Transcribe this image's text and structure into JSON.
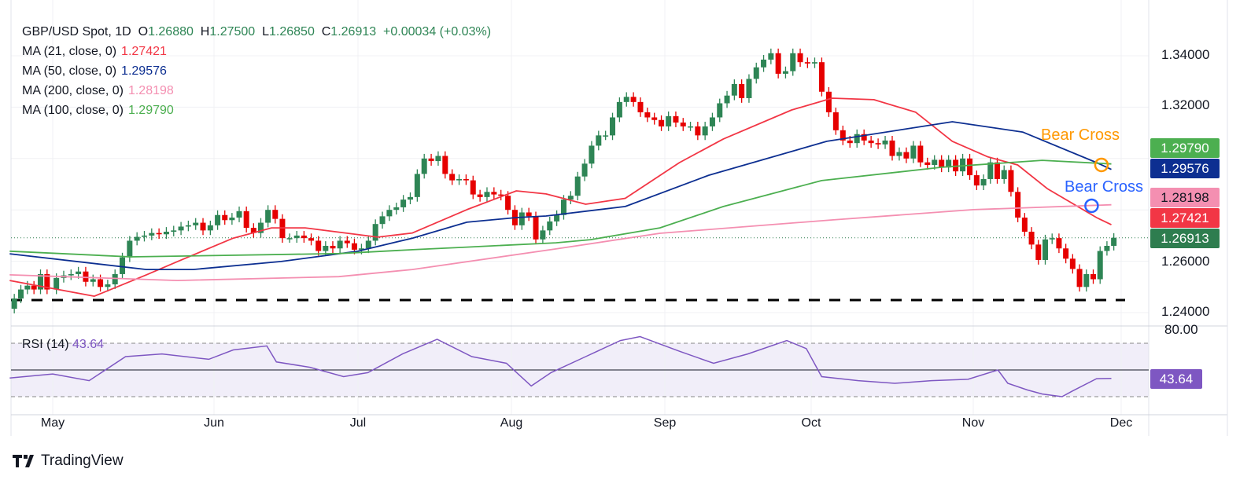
{
  "header": {
    "symbol": "GBP/USD Spot, 1D",
    "o_label": "O",
    "o": "1.26880",
    "h_label": "H",
    "h": "1.27500",
    "l_label": "L",
    "l": "1.26850",
    "c_label": "C",
    "c": "1.26913",
    "change": "+0.00034 (+0.03%)",
    "mas": [
      {
        "label": "MA (21, close, 0)",
        "value": "1.27421",
        "color": "#f23645"
      },
      {
        "label": "MA (50, close, 0)",
        "value": "1.29576",
        "color": "#0d2f91"
      },
      {
        "label": "MA (200, close, 0)",
        "value": "1.28198",
        "color": "#f48fb1"
      },
      {
        "label": "MA (100, close, 0)",
        "value": "1.29790",
        "color": "#4caf50"
      }
    ]
  },
  "price_tags": [
    {
      "value": "1.29790",
      "color": "#4caf50",
      "text_color": "#ffffff"
    },
    {
      "value": "1.29576",
      "color": "#0d2f91",
      "text_color": "#ffffff"
    },
    {
      "value": "1.28198",
      "color": "#f48fb1",
      "text_color": "#131722"
    },
    {
      "value": "1.27421",
      "color": "#f23645",
      "text_color": "#ffffff"
    },
    {
      "value": "1.26913",
      "color": "#2e7d4f",
      "text_color": "#ffffff"
    }
  ],
  "rsi": {
    "label": "RSI (14)",
    "value": "43.64",
    "color": "#7e57c2",
    "tag": "43.64"
  },
  "annotations": [
    {
      "text": "Bear Cross",
      "color": "#ff9800",
      "date": "Nov 27",
      "price": 1.2975
    },
    {
      "text": "Bear Cross",
      "color": "#2962ff",
      "date": "Nov 25",
      "price": 1.2816
    }
  ],
  "logo": "TradingView",
  "chart_data": {
    "type": "candlestick",
    "title": "GBP/USD Spot, 1D",
    "y_ticks": [
      "1.34000",
      "1.32000",
      "1.26000",
      "1.24000"
    ],
    "ylim": [
      1.2375,
      1.348
    ],
    "x_ticks": [
      "May",
      "Jun",
      "Jul",
      "Aug",
      "Sep",
      "Oct",
      "Nov",
      "Dec"
    ],
    "grid": true,
    "colors": {
      "up": "#2e8555",
      "down": "#e60000"
    },
    "last_close": 1.26913,
    "support_line": 1.2449,
    "closes_by_month": [
      {
        "month": "Apr",
        "closes": [
          1.2455,
          1.249,
          1.2505,
          1.249,
          1.255,
          1.249
        ]
      },
      {
        "month": "May",
        "closes": [
          1.2535,
          1.2545,
          1.255,
          1.256,
          1.252,
          1.253,
          1.25,
          1.251,
          1.255,
          1.2615,
          1.268,
          1.2695,
          1.27,
          1.271,
          1.2705,
          1.2715,
          1.272,
          1.2735,
          1.274,
          1.275,
          1.272,
          1.274
        ]
      },
      {
        "month": "Jun",
        "closes": [
          1.278,
          1.276,
          1.277,
          1.2795,
          1.273,
          1.271,
          1.275,
          1.28,
          1.2765,
          1.269,
          1.269,
          1.27,
          1.269,
          1.268,
          1.264,
          1.266,
          1.265,
          1.268,
          1.267,
          1.2645
        ]
      },
      {
        "month": "Jul",
        "closes": [
          1.265,
          1.268,
          1.2745,
          1.2775,
          1.28,
          1.281,
          1.284,
          1.285,
          1.294,
          1.3,
          1.299,
          1.301,
          1.294,
          1.2915,
          1.292,
          1.2915,
          1.286,
          1.285,
          1.287,
          1.286,
          1.2855,
          1.28
        ]
      },
      {
        "month": "Aug",
        "closes": [
          1.274,
          1.279,
          1.2775,
          1.2685,
          1.272,
          1.2755,
          1.278,
          1.284,
          1.2855,
          1.293,
          1.298,
          1.305,
          1.309,
          1.309,
          1.316,
          1.322,
          1.324,
          1.322,
          1.318,
          1.316,
          1.315,
          1.3125
        ]
      },
      {
        "month": "Sep",
        "closes": [
          1.3165,
          1.314,
          1.3125,
          1.3125,
          1.309,
          1.3125,
          1.316,
          1.3215,
          1.3245,
          1.329,
          1.3235,
          1.331,
          1.3355,
          1.3385,
          1.341,
          1.333,
          1.334,
          1.341,
          1.3375,
          1.337
        ]
      },
      {
        "month": "Oct",
        "closes": [
          1.3375,
          1.326,
          1.318,
          1.311,
          1.307,
          1.306,
          1.3095,
          1.307,
          1.306,
          1.3055,
          1.307,
          1.301,
          1.3025,
          1.3,
          1.305,
          1.2985,
          1.2975,
          1.2995,
          1.2965,
          1.2995,
          1.295,
          1.3,
          1.2935
        ]
      },
      {
        "month": "Nov",
        "closes": [
          1.2895,
          1.292,
          1.2985,
          1.292,
          1.2955,
          1.287,
          1.277,
          1.2715,
          1.2665,
          1.2605,
          1.2685,
          1.269,
          1.265,
          1.261,
          1.257,
          1.25,
          1.255,
          1.253,
          1.264,
          1.266,
          1.26913
        ]
      }
    ],
    "series": [
      {
        "name": "MA (21, close, 0)",
        "color": "#f23645",
        "points": [
          [
            "Apr 23",
            1.2525
          ],
          [
            "May 9",
            1.2464
          ],
          [
            "May 19",
            1.2547
          ],
          [
            "May 25",
            1.2599
          ],
          [
            "Jun 5",
            1.269
          ],
          [
            "Jun 13",
            1.273
          ],
          [
            "Jun 20",
            1.273
          ],
          [
            "Jul 5",
            1.2694
          ],
          [
            "Jul 12",
            1.271
          ],
          [
            "Jul 23",
            1.2801
          ],
          [
            "Aug 2",
            1.2874
          ],
          [
            "Aug 8",
            1.2862
          ],
          [
            "Aug 16",
            1.2822
          ],
          [
            "Aug 24",
            1.2845
          ],
          [
            "Sep 4",
            1.2984
          ],
          [
            "Sep 13",
            1.3076
          ],
          [
            "Sep 27",
            1.3189
          ],
          [
            "Oct 5",
            1.3235
          ],
          [
            "Oct 13",
            1.3229
          ],
          [
            "Oct 21",
            1.318
          ],
          [
            "Oct 28",
            1.3067
          ],
          [
            "Nov 4",
            1.3006
          ],
          [
            "Nov 10",
            1.2975
          ],
          [
            "Nov 16",
            1.2883
          ],
          [
            "Nov 26",
            1.277
          ],
          [
            "Nov 29",
            1.27421
          ]
        ]
      },
      {
        "name": "MA (50, close, 0)",
        "color": "#0d2f91",
        "points": [
          [
            "Apr 23",
            1.2629
          ],
          [
            "May 19",
            1.2568
          ],
          [
            "May 28",
            1.2568
          ],
          [
            "Jun 15",
            1.2599
          ],
          [
            "Jul 1",
            1.2639
          ],
          [
            "Jul 12",
            1.269
          ],
          [
            "Jul 23",
            1.2752
          ],
          [
            "Aug 2",
            1.277
          ],
          [
            "Aug 8",
            1.2776
          ],
          [
            "Aug 24",
            1.2813
          ],
          [
            "Sep 10",
            1.2935
          ],
          [
            "Oct 4",
            1.3067
          ],
          [
            "Oct 28",
            1.3143
          ],
          [
            "Nov 11",
            1.3103
          ],
          [
            "Nov 26",
            1.2984
          ],
          [
            "Nov 29",
            1.29576
          ]
        ]
      },
      {
        "name": "MA (100, close, 0)",
        "color": "#4caf50",
        "points": [
          [
            "Apr 23",
            1.2639
          ],
          [
            "May 16",
            1.2617
          ],
          [
            "Jun 27",
            1.263
          ],
          [
            "Jul 12",
            1.2645
          ],
          [
            "Jul 23",
            1.2655
          ],
          [
            "Aug 10",
            1.2672
          ],
          [
            "Aug 17",
            1.2684
          ],
          [
            "Aug 31",
            1.273
          ],
          [
            "Sep 13",
            1.2813
          ],
          [
            "Oct 3",
            1.2914
          ],
          [
            "Oct 26",
            1.2966
          ],
          [
            "Nov 15",
            1.2993
          ],
          [
            "Nov 29",
            1.2979
          ]
        ]
      },
      {
        "name": "MA (200, close, 0)",
        "color": "#f48fb1",
        "points": [
          [
            "Apr 23",
            1.2547
          ],
          [
            "May 25",
            1.2525
          ],
          [
            "Jun 27",
            1.254
          ],
          [
            "Jul 12",
            1.2568
          ],
          [
            "Aug 10",
            1.2648
          ],
          [
            "Aug 31",
            1.2709
          ],
          [
            "Oct 5",
            1.2761
          ],
          [
            "Nov 1",
            1.2801
          ],
          [
            "Nov 29",
            1.28198
          ]
        ]
      }
    ],
    "rsi": {
      "label": "RSI (14)",
      "ylim": [
        20,
        85
      ],
      "levels": [
        70,
        50,
        30
      ],
      "tick": "80.00",
      "points": [
        [
          "Apr 23",
          44
        ],
        [
          "May 1",
          47
        ],
        [
          "May 8",
          42
        ],
        [
          "May 15",
          60
        ],
        [
          "May 22",
          62
        ],
        [
          "May 31",
          58
        ],
        [
          "Jun 5",
          65
        ],
        [
          "Jun 12",
          68
        ],
        [
          "Jun 14",
          56
        ],
        [
          "Jun 21",
          52
        ],
        [
          "Jun 28",
          45
        ],
        [
          "Jul 3",
          48
        ],
        [
          "Jul 10",
          62
        ],
        [
          "Jul 17",
          73
        ],
        [
          "Jul 24",
          60
        ],
        [
          "Jul 31",
          55
        ],
        [
          "Aug 5",
          38
        ],
        [
          "Aug 9",
          48
        ],
        [
          "Aug 16",
          60
        ],
        [
          "Aug 23",
          72
        ],
        [
          "Aug 27",
          75
        ],
        [
          "Sep 4",
          64
        ],
        [
          "Sep 11",
          55
        ],
        [
          "Sep 18",
          62
        ],
        [
          "Sep 26",
          72
        ],
        [
          "Sep 30",
          66
        ],
        [
          "Oct 3",
          45
        ],
        [
          "Oct 10",
          42
        ],
        [
          "Oct 17",
          40
        ],
        [
          "Oct 24",
          42
        ],
        [
          "Oct 31",
          43
        ],
        [
          "Nov 6",
          50
        ],
        [
          "Nov 8",
          40
        ],
        [
          "Nov 12",
          35
        ],
        [
          "Nov 15",
          32
        ],
        [
          "Nov 19",
          30
        ],
        [
          "Nov 21",
          34
        ],
        [
          "Nov 26",
          43.5
        ],
        [
          "Nov 29",
          43.64
        ]
      ]
    }
  }
}
